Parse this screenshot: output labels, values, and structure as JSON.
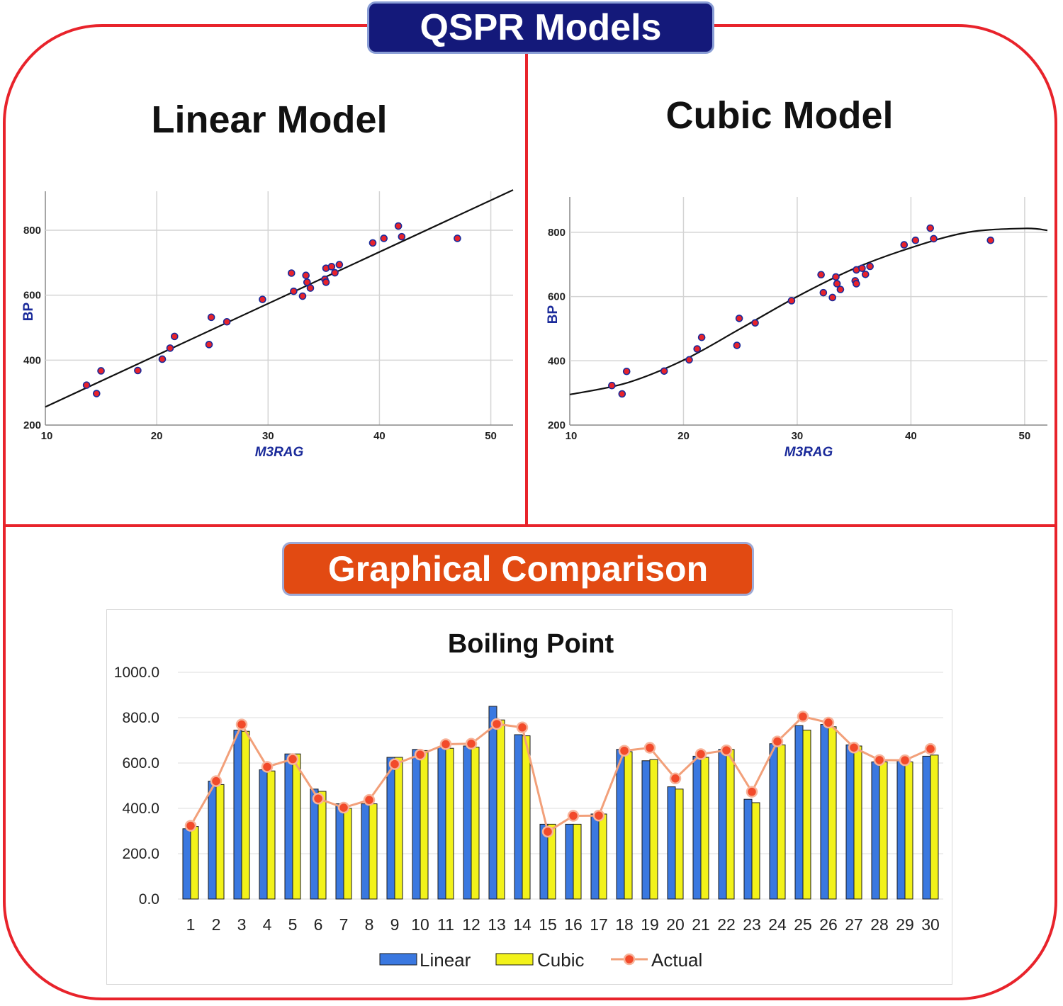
{
  "header": {
    "title": "QSPR Models"
  },
  "panels": {
    "linear_title": "Linear Model",
    "cubic_title": "Cubic Model",
    "comparison_title": "Graphical Comparison"
  },
  "colors": {
    "frame": "#e8232b",
    "header_badge": "#14197a",
    "comparison_badge": "#e24a12",
    "point_fill": "#e8232b",
    "point_stroke": "#1a2a9a",
    "axis_label": "#1a2a9a",
    "linear_bar": "#3a78e0",
    "cubic_bar": "#f2f21a",
    "actual_line": "#f2a07a",
    "actual_marker": "#f24a2a"
  },
  "chart_data": [
    {
      "type": "scatter",
      "title": "Linear Model",
      "xlabel": "M3RAG",
      "ylabel": "BP",
      "xlim": [
        10,
        52
      ],
      "ylim": [
        200,
        920
      ],
      "xticks": [
        10,
        20,
        30,
        40,
        50
      ],
      "yticks": [
        200,
        400,
        600,
        800
      ],
      "grid": true,
      "points": [
        [
          13.7,
          323
        ],
        [
          14.6,
          297
        ],
        [
          15.0,
          367
        ],
        [
          18.3,
          368
        ],
        [
          20.5,
          403
        ],
        [
          21.2,
          437
        ],
        [
          21.6,
          473
        ],
        [
          24.7,
          448
        ],
        [
          24.9,
          532
        ],
        [
          26.3,
          518
        ],
        [
          29.5,
          587
        ],
        [
          32.1,
          668
        ],
        [
          32.3,
          612
        ],
        [
          33.1,
          597
        ],
        [
          33.4,
          661
        ],
        [
          33.5,
          640
        ],
        [
          33.8,
          622
        ],
        [
          35.1,
          649
        ],
        [
          35.2,
          640
        ],
        [
          35.2,
          683
        ],
        [
          35.7,
          688
        ],
        [
          36.0,
          669
        ],
        [
          36.4,
          694
        ],
        [
          39.4,
          761
        ],
        [
          40.4,
          775
        ],
        [
          41.7,
          813
        ],
        [
          42.0,
          780
        ],
        [
          47.0,
          775
        ]
      ],
      "fit": {
        "kind": "linear",
        "x": [
          10,
          52
        ],
        "y": [
          256,
          924
        ]
      }
    },
    {
      "type": "scatter",
      "title": "Cubic Model",
      "xlabel": "M3RAG",
      "ylabel": "BP",
      "xlim": [
        10,
        52
      ],
      "ylim": [
        200,
        910
      ],
      "xticks": [
        10,
        20,
        30,
        40,
        50
      ],
      "yticks": [
        200,
        400,
        600,
        800
      ],
      "grid": true,
      "points": [
        [
          13.7,
          323
        ],
        [
          14.6,
          297
        ],
        [
          15.0,
          367
        ],
        [
          18.3,
          368
        ],
        [
          20.5,
          403
        ],
        [
          21.2,
          437
        ],
        [
          21.6,
          473
        ],
        [
          24.7,
          448
        ],
        [
          24.9,
          532
        ],
        [
          26.3,
          518
        ],
        [
          29.5,
          587
        ],
        [
          32.1,
          668
        ],
        [
          32.3,
          612
        ],
        [
          33.1,
          597
        ],
        [
          33.4,
          661
        ],
        [
          33.5,
          640
        ],
        [
          33.8,
          622
        ],
        [
          35.1,
          649
        ],
        [
          35.2,
          640
        ],
        [
          35.2,
          683
        ],
        [
          35.7,
          688
        ],
        [
          36.0,
          669
        ],
        [
          36.4,
          694
        ],
        [
          39.4,
          761
        ],
        [
          40.4,
          775
        ],
        [
          41.7,
          813
        ],
        [
          42.0,
          780
        ],
        [
          47.0,
          775
        ]
      ],
      "fit": {
        "kind": "cubic",
        "x": [
          10,
          15,
          20,
          25,
          30,
          35,
          40,
          45,
          50,
          52
        ],
        "y": [
          295,
          331,
          402,
          500,
          600,
          687,
          752,
          800,
          812,
          806
        ]
      }
    },
    {
      "type": "bar",
      "title": "Boiling Point",
      "categories": [
        "1",
        "2",
        "3",
        "4",
        "5",
        "6",
        "7",
        "8",
        "9",
        "10",
        "11",
        "12",
        "13",
        "14",
        "15",
        "16",
        "17",
        "18",
        "19",
        "20",
        "21",
        "22",
        "23",
        "24",
        "25",
        "26",
        "27",
        "28",
        "29",
        "30"
      ],
      "ylim": [
        0,
        1000
      ],
      "yticks": [
        "0.0",
        "200.0",
        "400.0",
        "600.0",
        "800.0",
        "1000.0"
      ],
      "grid": true,
      "legend": "bottom",
      "series": [
        {
          "name": "Linear",
          "kind": "bar",
          "values": [
            310,
            520,
            745,
            570,
            640,
            485,
            420,
            420,
            625,
            660,
            670,
            675,
            850,
            725,
            330,
            330,
            375,
            660,
            610,
            495,
            630,
            660,
            440,
            685,
            765,
            770,
            680,
            605,
            610,
            630
          ]
        },
        {
          "name": "Cubic",
          "kind": "bar",
          "values": [
            320,
            505,
            740,
            565,
            640,
            475,
            400,
            420,
            625,
            655,
            665,
            670,
            790,
            720,
            330,
            330,
            375,
            650,
            615,
            485,
            625,
            660,
            425,
            680,
            745,
            760,
            675,
            605,
            605,
            635
          ]
        },
        {
          "name": "Actual",
          "kind": "line",
          "values": [
            323,
            520,
            770,
            583,
            617,
            443,
            403,
            437,
            595,
            637,
            683,
            685,
            772,
            757,
            297,
            367,
            368,
            654,
            667,
            532,
            639,
            656,
            473,
            695,
            805,
            778,
            668,
            613,
            612,
            662
          ]
        }
      ]
    }
  ]
}
